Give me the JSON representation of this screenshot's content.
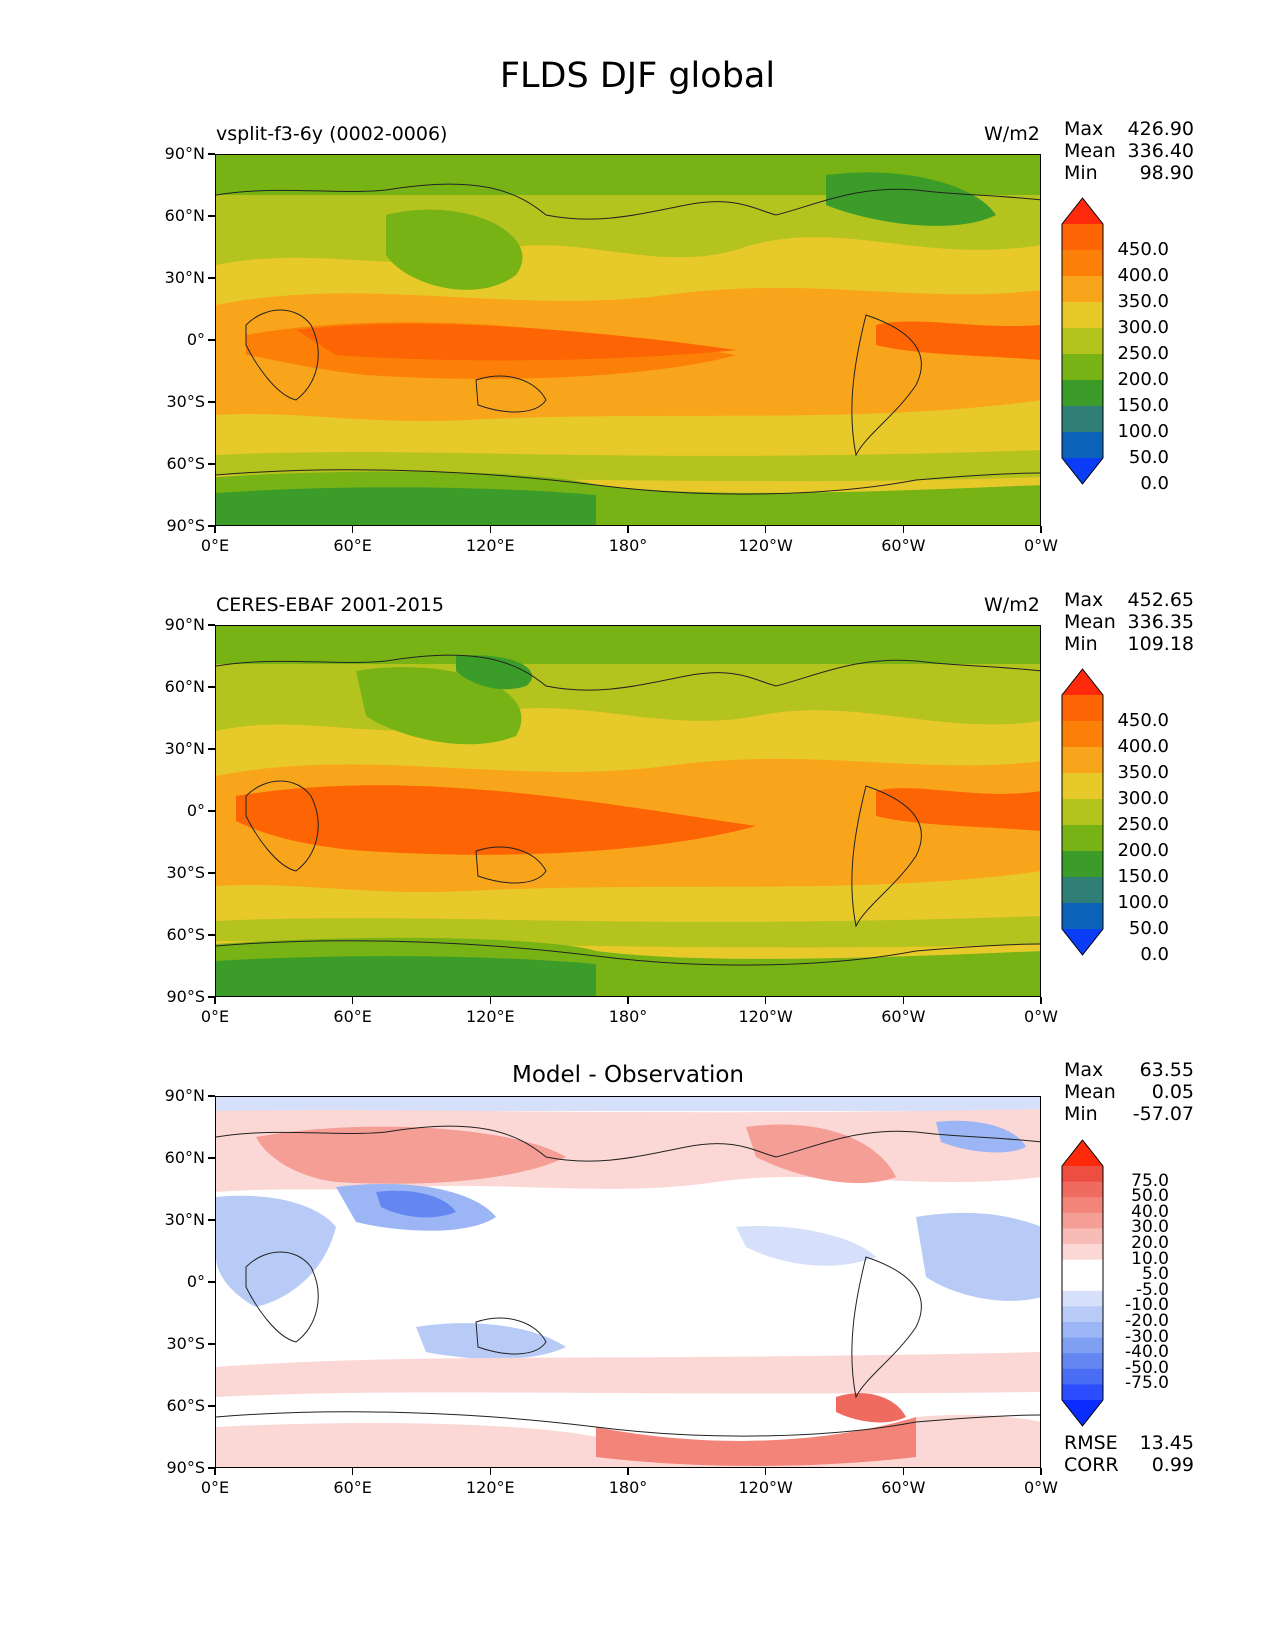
{
  "title": "FLDS DJF global",
  "panels": [
    {
      "label_left": "vsplit-f3-6y (0002-0006)",
      "label_right": "W/m2",
      "stats": {
        "max_label": "Max",
        "max": "426.90",
        "mean_label": "Mean",
        "mean": "336.40",
        "min_label": "Min",
        "min": "98.90"
      },
      "colorbar": {
        "colors": [
          "#0b3cf6",
          "#0a62b9",
          "#2f7f76",
          "#3c9c2a",
          "#78b315",
          "#b5c31e",
          "#e8c92a",
          "#f9a51b",
          "#fc8008",
          "#fd6404",
          "#ff2a0c"
        ],
        "labels": [
          "450.0",
          "400.0",
          "350.0",
          "300.0",
          "250.0",
          "200.0",
          "150.0",
          "100.0",
          "50.0",
          "0.0"
        ]
      }
    },
    {
      "label_left": "CERES-EBAF 2001-2015",
      "label_right": "W/m2",
      "stats": {
        "max_label": "Max",
        "max": "452.65",
        "mean_label": "Mean",
        "mean": "336.35",
        "min_label": "Min",
        "min": "109.18"
      },
      "colorbar": {
        "colors": [
          "#0b3cf6",
          "#0a62b9",
          "#2f7f76",
          "#3c9c2a",
          "#78b315",
          "#b5c31e",
          "#e8c92a",
          "#f9a51b",
          "#fc8008",
          "#fd6404",
          "#ff2a0c"
        ],
        "labels": [
          "450.0",
          "400.0",
          "350.0",
          "300.0",
          "250.0",
          "200.0",
          "150.0",
          "100.0",
          "50.0",
          "0.0"
        ]
      }
    },
    {
      "title": "Model - Observation",
      "stats": {
        "max_label": "Max",
        "max": "63.55",
        "mean_label": "Mean",
        "mean": "0.05",
        "min_label": "Min",
        "min": "-57.07"
      },
      "footer": {
        "rmse_label": "RMSE",
        "rmse": "13.45",
        "corr_label": "CORR",
        "corr": "0.99"
      },
      "colorbar": {
        "colors": [
          "#0b2cff",
          "#2a4dff",
          "#4a6df5",
          "#6486f0",
          "#7f9ff2",
          "#9cb6f5",
          "#b8cbf7",
          "#d6e0fb",
          "#ffffff",
          "#ffffff",
          "#fbd8d5",
          "#f8bcb6",
          "#f59e96",
          "#f2847a",
          "#ef6a5f",
          "#ec4e42",
          "#ff2a0c"
        ],
        "labels": [
          "75.0",
          "50.0",
          "40.0",
          "30.0",
          "20.0",
          "10.0",
          "5.0",
          "-5.0",
          "-10.0",
          "-20.0",
          "-30.0",
          "-40.0",
          "-50.0",
          "-75.0"
        ]
      }
    }
  ],
  "axes": {
    "lat_ticks": [
      "90°N",
      "60°N",
      "30°N",
      "0°",
      "30°S",
      "60°S",
      "90°S"
    ],
    "lon_ticks": [
      "0°E",
      "60°E",
      "120°E",
      "180°",
      "120°W",
      "60°W",
      "0°W"
    ]
  }
}
